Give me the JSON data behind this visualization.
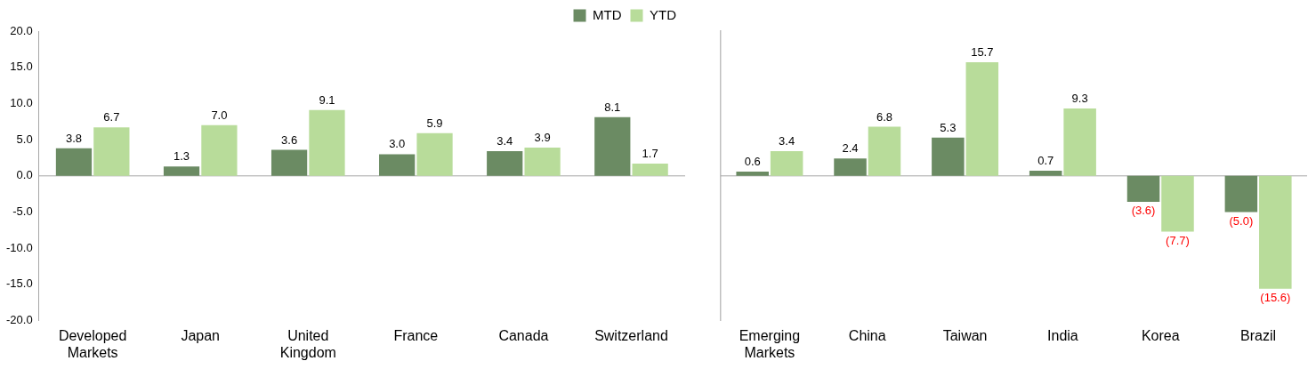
{
  "chart_data": [
    {
      "type": "bar",
      "categories": [
        "Developed Markets",
        "Japan",
        "United Kingdom",
        "France",
        "Canada",
        "Switzerland"
      ],
      "series": [
        {
          "name": "MTD",
          "color": "#6b8b63",
          "values": [
            3.8,
            1.3,
            3.6,
            3.0,
            3.4,
            8.1
          ],
          "value_labels": [
            "3.8",
            "1.3",
            "3.6",
            "3.0",
            "3.4",
            "8.1"
          ]
        },
        {
          "name": "YTD",
          "color": "#b8dc9a",
          "values": [
            6.7,
            7.0,
            9.1,
            5.9,
            3.9,
            1.7
          ],
          "value_labels": [
            "6.7",
            "7.0",
            "9.1",
            "5.9",
            "3.9",
            "1.7"
          ]
        }
      ],
      "ylim": [
        -20,
        20
      ],
      "yticks": [
        {
          "value": -20,
          "label": "-20.0"
        },
        {
          "value": -15,
          "label": "-15.0"
        },
        {
          "value": -10,
          "label": "-10.0"
        },
        {
          "value": -5,
          "label": "-5.0"
        },
        {
          "value": 0,
          "label": "0.0"
        },
        {
          "value": 5,
          "label": "5.0"
        },
        {
          "value": 10,
          "label": "10.0"
        },
        {
          "value": 15,
          "label": "15.0"
        },
        {
          "value": 20,
          "label": "20.0"
        }
      ],
      "ref_lines": [
        {
          "axis": "y",
          "value": 0,
          "color": "#a6a6a6"
        }
      ],
      "grid": false,
      "legend": "top right"
    },
    {
      "type": "bar",
      "categories": [
        "Emerging Markets",
        "China",
        "Taiwan",
        "India",
        "Korea",
        "Brazil"
      ],
      "series": [
        {
          "color": "#6b8b63",
          "values": [
            0.6,
            2.4,
            5.3,
            0.7,
            -3.6,
            -5.0
          ],
          "value_labels": [
            "0.6",
            "2.4",
            "5.3",
            "0.7",
            "(3.6)",
            "(5.0)"
          ]
        },
        {
          "color": "#b8dc9a",
          "values": [
            3.4,
            6.8,
            15.7,
            9.3,
            -7.7,
            -15.6
          ],
          "value_labels": [
            "3.4",
            "6.8",
            "15.7",
            "9.3",
            "(7.7)",
            "(15.6)"
          ]
        }
      ],
      "ylim": [
        -20,
        20
      ],
      "ref_lines": [
        {
          "axis": "y",
          "value": 0,
          "color": "#a6a6a6"
        }
      ],
      "tick_labels": "x",
      "grid": false
    }
  ]
}
